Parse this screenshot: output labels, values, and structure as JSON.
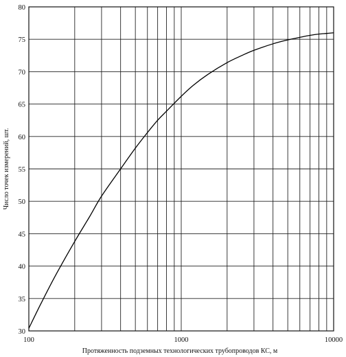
{
  "chart_data": {
    "type": "line",
    "title": "",
    "xlabel": "Протяженность подземных технологических трубопроводов КС, м",
    "ylabel": "Число точек измерений, шт.",
    "xscale": "log",
    "xlim": [
      100,
      10000
    ],
    "ylim": [
      30,
      80
    ],
    "grid": true,
    "x_ticks": [
      100,
      1000,
      10000
    ],
    "x_tick_labels": [
      "100",
      "1000",
      "10000"
    ],
    "y_ticks": [
      30,
      35,
      40,
      45,
      50,
      55,
      60,
      65,
      70,
      75,
      80
    ],
    "y_tick_labels": [
      "30",
      "35",
      "40",
      "45",
      "50",
      "55",
      "60",
      "65",
      "70",
      "75",
      "80"
    ],
    "series": [
      {
        "x": [
          100,
          120,
          150,
          200,
          250,
          300,
          400,
          500,
          600,
          700,
          800,
          1000,
          1200,
          1500,
          2000,
          2500,
          3000,
          4000,
          5000,
          6000,
          7000,
          8000,
          9000,
          10000
        ],
        "y": [
          30.4,
          34.2,
          38.6,
          43.8,
          47.6,
          50.8,
          55.0,
          58.2,
          60.6,
          62.5,
          63.9,
          66.2,
          67.9,
          69.6,
          71.4,
          72.5,
          73.3,
          74.3,
          74.9,
          75.3,
          75.6,
          75.8,
          75.9,
          76.0
        ]
      }
    ]
  }
}
